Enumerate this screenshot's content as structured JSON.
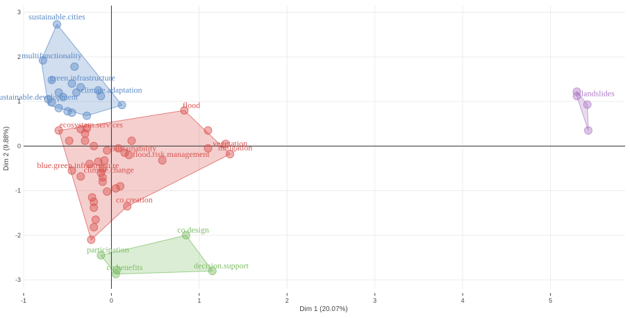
{
  "chart_data": {
    "type": "scatter",
    "xlabel": "Dim 1 (20.07%)",
    "ylabel": "Dim 2 (9.88%)",
    "xlim": [
      -1.0,
      5.85
    ],
    "ylim": [
      -3.2,
      3.15
    ],
    "xticks": [
      "-1",
      "0",
      "1",
      "2",
      "3",
      "4",
      "5"
    ],
    "yticks": [
      "-3",
      "-2",
      "-1",
      "0",
      "1",
      "2",
      "3"
    ],
    "grid": true,
    "clusters": [
      {
        "color": "#5b8ac6",
        "hull": [
          [
            -0.62,
            2.73
          ],
          [
            0.12,
            0.92
          ],
          [
            -0.28,
            0.68
          ],
          [
            -0.72,
            0.92
          ],
          [
            -0.8,
            1.92
          ]
        ],
        "points": [
          [
            -0.62,
            2.73
          ],
          [
            -0.78,
            1.92
          ],
          [
            -0.42,
            1.78
          ],
          [
            -0.68,
            1.48
          ],
          [
            -0.6,
            1.2
          ],
          [
            -0.45,
            1.4
          ],
          [
            -0.35,
            1.32
          ],
          [
            -0.4,
            1.2
          ],
          [
            -0.12,
            1.12
          ],
          [
            -0.72,
            1.05
          ],
          [
            -0.68,
            0.98
          ],
          [
            -0.6,
            0.85
          ],
          [
            -0.5,
            0.78
          ],
          [
            -0.45,
            0.75
          ],
          [
            -0.28,
            0.68
          ],
          [
            0.12,
            0.92
          ],
          [
            -0.15,
            1.25
          ],
          [
            -0.55,
            1.1
          ]
        ],
        "labels": [
          {
            "text": "sustainable.cities",
            "x": -0.62,
            "y": 2.9
          },
          {
            "text": "multifunctionality",
            "x": -0.68,
            "y": 2.03
          },
          {
            "text": "green.infrastructure",
            "x": -0.33,
            "y": 1.53
          },
          {
            "text": "climate.adaptation",
            "x": 0.0,
            "y": 1.26
          },
          {
            "text": "sustainable.development",
            "x": -0.85,
            "y": 1.1
          }
        ]
      },
      {
        "color": "#d9534f",
        "hull": [
          [
            -0.6,
            0.35
          ],
          [
            0.83,
            0.8
          ],
          [
            1.35,
            -0.18
          ],
          [
            0.18,
            -1.35
          ],
          [
            -0.23,
            -2.1
          ]
        ],
        "points": [
          [
            0.83,
            0.8
          ],
          [
            1.1,
            0.35
          ],
          [
            1.3,
            0.05
          ],
          [
            1.35,
            -0.18
          ],
          [
            1.1,
            -0.05
          ],
          [
            -0.6,
            0.35
          ],
          [
            -0.28,
            0.4
          ],
          [
            -0.3,
            0.28
          ],
          [
            -0.48,
            0.12
          ],
          [
            -0.3,
            0.12
          ],
          [
            -0.2,
            0.0
          ],
          [
            -0.05,
            -0.1
          ],
          [
            0.08,
            -0.05
          ],
          [
            0.15,
            -0.15
          ],
          [
            0.2,
            -0.2
          ],
          [
            0.23,
            0.12
          ],
          [
            0.58,
            -0.32
          ],
          [
            -0.45,
            -0.55
          ],
          [
            -0.35,
            -0.68
          ],
          [
            -0.25,
            -0.4
          ],
          [
            -0.15,
            -0.35
          ],
          [
            -0.1,
            -0.5
          ],
          [
            -0.12,
            -0.6
          ],
          [
            -0.1,
            -0.7
          ],
          [
            -0.1,
            -0.8
          ],
          [
            -0.05,
            -1.02
          ],
          [
            0.05,
            -0.95
          ],
          [
            0.1,
            -0.9
          ],
          [
            -0.22,
            -1.15
          ],
          [
            -0.2,
            -1.25
          ],
          [
            -0.2,
            -1.38
          ],
          [
            -0.18,
            -1.65
          ],
          [
            -0.2,
            -1.82
          ],
          [
            -0.23,
            -2.1
          ],
          [
            0.18,
            -1.35
          ],
          [
            -0.35,
            0.38
          ],
          [
            -0.08,
            -0.32
          ]
        ],
        "labels": [
          {
            "text": "flood",
            "x": 0.91,
            "y": 0.92
          },
          {
            "text": "ecosystem.services",
            "x": -0.23,
            "y": 0.48
          },
          {
            "text": "vegetation",
            "x": 1.35,
            "y": 0.06
          },
          {
            "text": "mitigation",
            "x": 1.41,
            "y": -0.03
          },
          {
            "text": "sustainability",
            "x": 0.26,
            "y": -0.05
          },
          {
            "text": "flood.risk.management",
            "x": 0.68,
            "y": -0.18
          },
          {
            "text": "blue.green.infrastructure",
            "x": -0.38,
            "y": -0.43
          },
          {
            "text": "climate.change",
            "x": -0.03,
            "y": -0.53
          },
          {
            "text": "co.creation",
            "x": 0.26,
            "y": -1.2
          }
        ]
      },
      {
        "color": "#7cbd65",
        "hull": [
          [
            -0.12,
            -2.45
          ],
          [
            0.85,
            -2.0
          ],
          [
            1.15,
            -2.8
          ],
          [
            0.05,
            -2.87
          ]
        ],
        "points": [
          [
            0.85,
            -2.0
          ],
          [
            -0.12,
            -2.45
          ],
          [
            1.15,
            -2.8
          ],
          [
            0.05,
            -2.87
          ],
          [
            0.06,
            -2.78
          ]
        ],
        "labels": [
          {
            "text": "co.design",
            "x": 0.93,
            "y": -1.88
          },
          {
            "text": "participation",
            "x": -0.04,
            "y": -2.32
          },
          {
            "text": "decision.support",
            "x": 1.25,
            "y": -2.68
          },
          {
            "text": "co.benefits",
            "x": 0.15,
            "y": -2.72
          }
        ]
      },
      {
        "color": "#b07cc6",
        "hull": [
          [
            5.3,
            1.22
          ],
          [
            5.42,
            0.93
          ],
          [
            5.43,
            0.35
          ],
          [
            5.3,
            1.12
          ]
        ],
        "points": [
          [
            5.3,
            1.22
          ],
          [
            5.3,
            1.12
          ],
          [
            5.42,
            0.93
          ],
          [
            5.43,
            0.35
          ]
        ],
        "labels": [
          {
            "text": "landslides",
            "x": 5.54,
            "y": 1.18
          }
        ]
      }
    ]
  }
}
